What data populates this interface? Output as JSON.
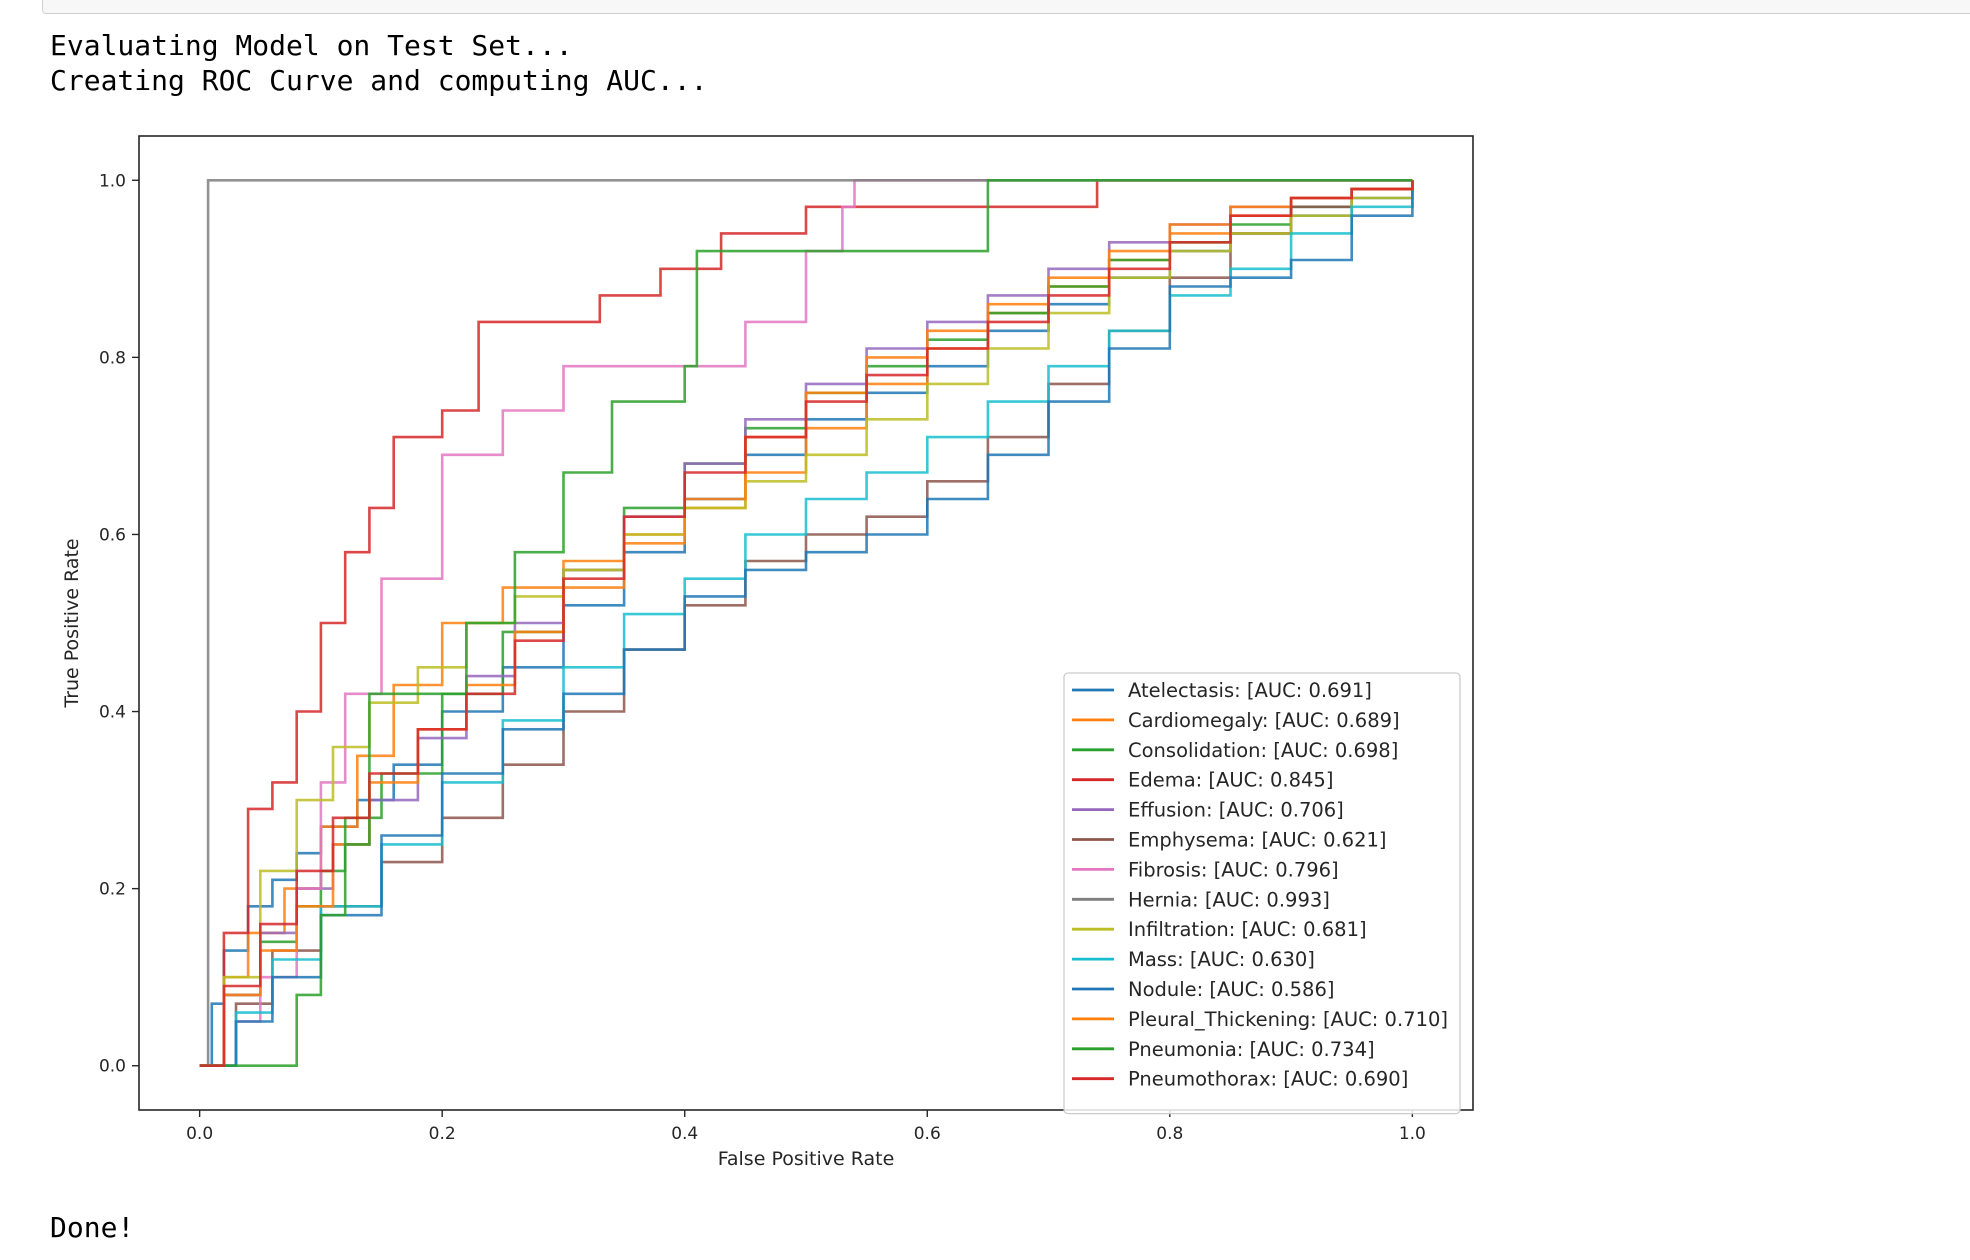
{
  "console": {
    "lines": [
      "Evaluating Model on Test Set...",
      "Creating ROC Curve and computing AUC..."
    ],
    "done": "Done!"
  },
  "chart_data": {
    "type": "line",
    "title": "",
    "xlabel": "False Positive Rate",
    "ylabel": "True Positive Rate",
    "xlim": [
      -0.05,
      1.05
    ],
    "ylim": [
      -0.05,
      1.05
    ],
    "xticks": [
      "0.0",
      "0.2",
      "0.4",
      "0.6",
      "0.8",
      "1.0"
    ],
    "yticks": [
      "0.0",
      "0.2",
      "0.4",
      "0.6",
      "0.8",
      "1.0"
    ],
    "grid": false,
    "legend_position": "lower-right",
    "series": [
      {
        "name": "Atelectasis: [AUC: 0.691]",
        "color": "#1f77b4",
        "x": [
          0.0,
          0.01,
          0.02,
          0.04,
          0.06,
          0.08,
          0.1,
          0.13,
          0.16,
          0.2,
          0.25,
          0.3,
          0.35,
          0.4,
          0.45,
          0.5,
          0.55,
          0.6,
          0.65,
          0.7,
          0.75,
          0.8,
          0.85,
          0.9,
          0.95,
          1.0
        ],
        "y": [
          0.0,
          0.07,
          0.13,
          0.18,
          0.21,
          0.24,
          0.27,
          0.3,
          0.34,
          0.4,
          0.45,
          0.52,
          0.58,
          0.64,
          0.69,
          0.73,
          0.76,
          0.79,
          0.83,
          0.86,
          0.89,
          0.92,
          0.94,
          0.96,
          0.98,
          1.0
        ]
      },
      {
        "name": "Cardiomegaly: [AUC: 0.689]",
        "color": "#ff7f0e",
        "x": [
          0.0,
          0.02,
          0.04,
          0.07,
          0.1,
          0.13,
          0.16,
          0.2,
          0.25,
          0.3,
          0.35,
          0.4,
          0.45,
          0.5,
          0.55,
          0.6,
          0.65,
          0.7,
          0.75,
          0.8,
          0.85,
          0.9,
          0.95,
          1.0
        ],
        "y": [
          0.0,
          0.1,
          0.15,
          0.2,
          0.27,
          0.35,
          0.43,
          0.5,
          0.54,
          0.57,
          0.6,
          0.63,
          0.67,
          0.72,
          0.77,
          0.81,
          0.85,
          0.88,
          0.91,
          0.94,
          0.96,
          0.98,
          0.99,
          1.0
        ]
      },
      {
        "name": "Consolidation: [AUC: 0.698]",
        "color": "#2ca02c",
        "x": [
          0.0,
          0.02,
          0.05,
          0.08,
          0.1,
          0.12,
          0.15,
          0.2,
          0.25,
          0.3,
          0.35,
          0.4,
          0.45,
          0.5,
          0.55,
          0.6,
          0.65,
          0.7,
          0.75,
          0.8,
          0.85,
          0.9,
          0.95,
          1.0
        ],
        "y": [
          0.0,
          0.08,
          0.14,
          0.18,
          0.22,
          0.28,
          0.33,
          0.42,
          0.49,
          0.56,
          0.63,
          0.68,
          0.72,
          0.76,
          0.79,
          0.82,
          0.85,
          0.88,
          0.91,
          0.93,
          0.95,
          0.97,
          0.99,
          1.0
        ]
      },
      {
        "name": "Edema: [AUC: 0.845]",
        "color": "#d62728",
        "x": [
          0.0,
          0.02,
          0.04,
          0.06,
          0.08,
          0.1,
          0.12,
          0.14,
          0.16,
          0.2,
          0.23,
          0.28,
          0.33,
          0.38,
          0.43,
          0.5,
          0.6,
          0.7,
          0.74,
          0.8,
          1.0
        ],
        "y": [
          0.0,
          0.15,
          0.29,
          0.32,
          0.4,
          0.5,
          0.58,
          0.63,
          0.71,
          0.74,
          0.84,
          0.84,
          0.87,
          0.9,
          0.94,
          0.97,
          0.97,
          0.97,
          1.0,
          1.0,
          1.0
        ]
      },
      {
        "name": "Effusion: [AUC: 0.706]",
        "color": "#9467bd",
        "x": [
          0.0,
          0.02,
          0.05,
          0.08,
          0.11,
          0.14,
          0.18,
          0.22,
          0.26,
          0.3,
          0.35,
          0.4,
          0.45,
          0.5,
          0.55,
          0.6,
          0.65,
          0.7,
          0.75,
          0.8,
          0.85,
          0.9,
          0.95,
          1.0
        ],
        "y": [
          0.0,
          0.08,
          0.15,
          0.2,
          0.25,
          0.3,
          0.37,
          0.44,
          0.5,
          0.56,
          0.62,
          0.68,
          0.73,
          0.77,
          0.81,
          0.84,
          0.87,
          0.9,
          0.93,
          0.95,
          0.97,
          0.98,
          0.99,
          1.0
        ]
      },
      {
        "name": "Emphysema: [AUC: 0.621]",
        "color": "#8c564b",
        "x": [
          0.0,
          0.03,
          0.06,
          0.1,
          0.15,
          0.2,
          0.25,
          0.3,
          0.35,
          0.4,
          0.45,
          0.5,
          0.55,
          0.6,
          0.65,
          0.7,
          0.75,
          0.8,
          0.85,
          0.9,
          0.95,
          1.0
        ],
        "y": [
          0.0,
          0.07,
          0.13,
          0.18,
          0.23,
          0.28,
          0.34,
          0.4,
          0.47,
          0.52,
          0.57,
          0.6,
          0.62,
          0.66,
          0.71,
          0.77,
          0.83,
          0.89,
          0.94,
          0.97,
          0.99,
          1.0
        ]
      },
      {
        "name": "Fibrosis: [AUC: 0.796]",
        "color": "#e377c2",
        "x": [
          0.0,
          0.03,
          0.05,
          0.08,
          0.1,
          0.12,
          0.15,
          0.2,
          0.25,
          0.3,
          0.35,
          0.4,
          0.45,
          0.5,
          0.53,
          0.54,
          0.6,
          1.0
        ],
        "y": [
          0.0,
          0.05,
          0.1,
          0.2,
          0.32,
          0.42,
          0.55,
          0.69,
          0.74,
          0.79,
          0.79,
          0.79,
          0.84,
          0.92,
          0.97,
          1.0,
          1.0,
          1.0
        ]
      },
      {
        "name": "Hernia: [AUC: 0.993]",
        "color": "#7f7f7f",
        "x": [
          0.0,
          0.007,
          0.007,
          1.0
        ],
        "y": [
          0.0,
          0.0,
          1.0,
          1.0
        ]
      },
      {
        "name": "Infiltration: [AUC: 0.681]",
        "color": "#bcbd22",
        "x": [
          0.0,
          0.02,
          0.05,
          0.08,
          0.11,
          0.14,
          0.18,
          0.22,
          0.26,
          0.3,
          0.35,
          0.4,
          0.45,
          0.5,
          0.55,
          0.6,
          0.65,
          0.7,
          0.75,
          0.8,
          0.85,
          0.9,
          0.95,
          1.0
        ],
        "y": [
          0.0,
          0.1,
          0.22,
          0.3,
          0.36,
          0.41,
          0.45,
          0.5,
          0.53,
          0.56,
          0.6,
          0.63,
          0.66,
          0.69,
          0.73,
          0.77,
          0.81,
          0.85,
          0.89,
          0.92,
          0.94,
          0.96,
          0.98,
          1.0
        ]
      },
      {
        "name": "Mass: [AUC: 0.630]",
        "color": "#17becf",
        "x": [
          0.0,
          0.03,
          0.06,
          0.1,
          0.15,
          0.2,
          0.25,
          0.3,
          0.35,
          0.4,
          0.45,
          0.5,
          0.55,
          0.6,
          0.65,
          0.7,
          0.75,
          0.8,
          0.85,
          0.9,
          0.95,
          1.0
        ],
        "y": [
          0.0,
          0.06,
          0.12,
          0.18,
          0.25,
          0.32,
          0.39,
          0.45,
          0.51,
          0.55,
          0.6,
          0.64,
          0.67,
          0.71,
          0.75,
          0.79,
          0.83,
          0.87,
          0.9,
          0.94,
          0.97,
          1.0
        ]
      },
      {
        "name": "Nodule: [AUC: 0.586]",
        "color": "#1f77b4",
        "x": [
          0.0,
          0.03,
          0.06,
          0.1,
          0.15,
          0.2,
          0.25,
          0.3,
          0.35,
          0.4,
          0.45,
          0.5,
          0.55,
          0.6,
          0.65,
          0.7,
          0.75,
          0.8,
          0.85,
          0.9,
          0.95,
          1.0
        ],
        "y": [
          0.0,
          0.05,
          0.1,
          0.17,
          0.26,
          0.33,
          0.38,
          0.42,
          0.47,
          0.53,
          0.56,
          0.58,
          0.6,
          0.64,
          0.69,
          0.75,
          0.81,
          0.88,
          0.89,
          0.91,
          0.96,
          1.0
        ]
      },
      {
        "name": "Pleural_Thickening: [AUC: 0.710]",
        "color": "#ff7f0e",
        "x": [
          0.0,
          0.02,
          0.05,
          0.08,
          0.11,
          0.14,
          0.18,
          0.22,
          0.26,
          0.3,
          0.35,
          0.4,
          0.45,
          0.5,
          0.55,
          0.6,
          0.65,
          0.7,
          0.75,
          0.8,
          0.85,
          0.9,
          0.95,
          1.0
        ],
        "y": [
          0.0,
          0.08,
          0.13,
          0.18,
          0.25,
          0.32,
          0.38,
          0.43,
          0.49,
          0.54,
          0.59,
          0.64,
          0.71,
          0.76,
          0.8,
          0.83,
          0.86,
          0.89,
          0.92,
          0.95,
          0.97,
          0.98,
          0.99,
          1.0
        ]
      },
      {
        "name": "Pneumonia: [AUC: 0.734]",
        "color": "#2ca02c",
        "x": [
          0.0,
          0.08,
          0.08,
          0.1,
          0.12,
          0.14,
          0.18,
          0.22,
          0.26,
          0.3,
          0.34,
          0.38,
          0.4,
          0.41,
          0.41,
          0.5,
          0.6,
          0.65,
          0.65,
          0.8,
          1.0
        ],
        "y": [
          0.0,
          0.0,
          0.08,
          0.17,
          0.25,
          0.42,
          0.42,
          0.5,
          0.58,
          0.67,
          0.75,
          0.75,
          0.79,
          0.79,
          0.92,
          0.92,
          0.92,
          0.92,
          1.0,
          1.0,
          1.0
        ]
      },
      {
        "name": "Pneumothorax: [AUC: 0.690]",
        "color": "#d62728",
        "x": [
          0.0,
          0.02,
          0.05,
          0.08,
          0.11,
          0.14,
          0.18,
          0.22,
          0.26,
          0.3,
          0.35,
          0.4,
          0.45,
          0.5,
          0.55,
          0.6,
          0.65,
          0.7,
          0.75,
          0.8,
          0.85,
          0.9,
          0.95,
          1.0
        ],
        "y": [
          0.0,
          0.09,
          0.16,
          0.22,
          0.28,
          0.33,
          0.38,
          0.42,
          0.48,
          0.55,
          0.62,
          0.67,
          0.71,
          0.75,
          0.78,
          0.81,
          0.84,
          0.87,
          0.9,
          0.93,
          0.96,
          0.98,
          0.99,
          1.0
        ]
      }
    ]
  }
}
